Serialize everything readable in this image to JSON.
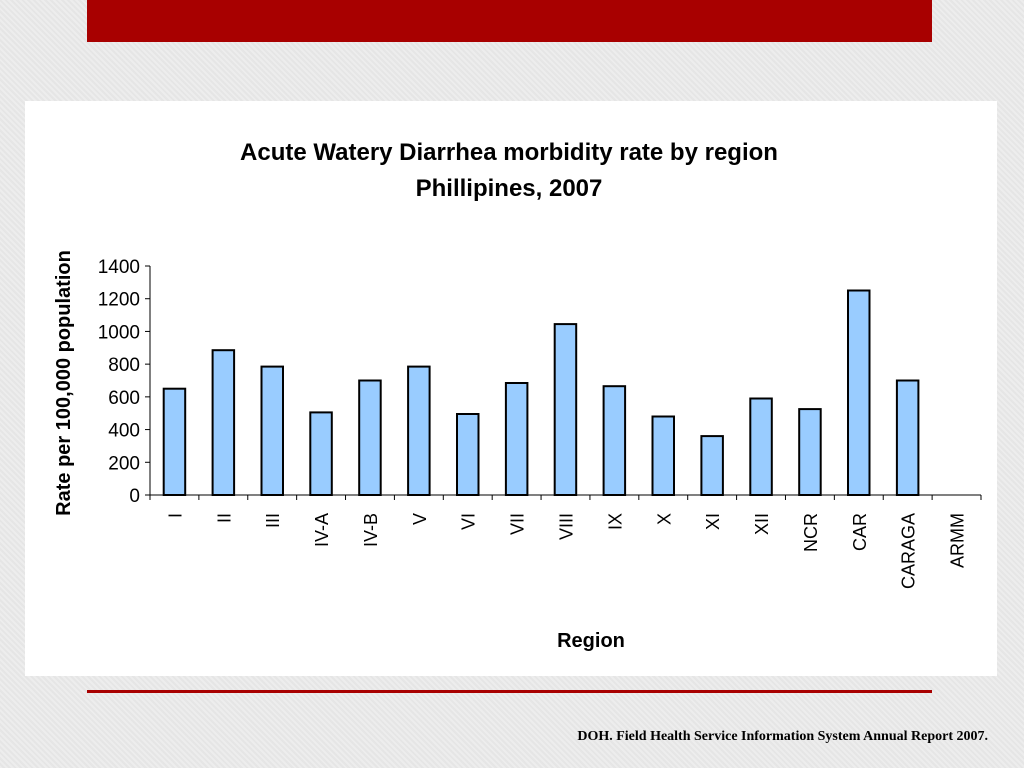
{
  "theme": {
    "accent": "#a80000",
    "bar_fill": "#99ccff",
    "bar_stroke": "#000000"
  },
  "chart_data": {
    "type": "bar",
    "title_line1": "Acute Watery Diarrhea morbidity rate by region",
    "title_line2": "Phillipines, 2007",
    "xlabel": "Region",
    "ylabel": "Rate per 100,000 population",
    "ylim": [
      0,
      1400
    ],
    "yticks": [
      0,
      200,
      400,
      600,
      800,
      1000,
      1200,
      1400
    ],
    "yticks_labels": [
      "0",
      "200",
      "400",
      "600",
      "800",
      "1000",
      "1200",
      "1400"
    ],
    "categories": [
      "I",
      "II",
      "III",
      "IV-A",
      "IV-B",
      "V",
      "VI",
      "VII",
      "VIII",
      "IX",
      "X",
      "XI",
      "XII",
      "NCR",
      "CAR",
      "CARAGA",
      "ARMM"
    ],
    "values": [
      650,
      885,
      785,
      505,
      700,
      785,
      495,
      685,
      1045,
      665,
      480,
      360,
      590,
      525,
      1250,
      700,
      0
    ],
    "grid": false,
    "legend": "none"
  },
  "footer": {
    "source": "DOH. Field Health Service Information System Annual Report 2007."
  }
}
